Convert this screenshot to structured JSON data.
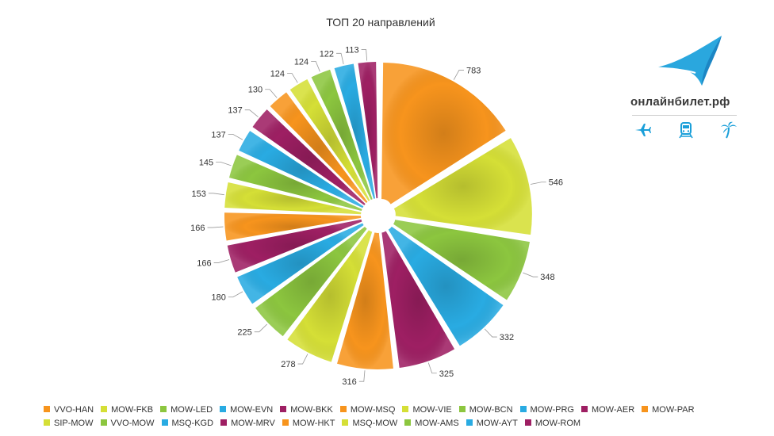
{
  "chart_data": {
    "type": "pie",
    "title": "ТОП 20 направлений",
    "categories": [
      "VVO-HAN",
      "MOW-FKB",
      "MOW-LED",
      "MOW-EVN",
      "MOW-BKK",
      "MOW-MSQ",
      "MOW-VIE",
      "MOW-BCN",
      "MOW-PRG",
      "MOW-AER",
      "MOW-PAR",
      "SIP-MOW",
      "VVO-MOW",
      "MSQ-KGD",
      "MOW-MRV",
      "MOW-HKT",
      "MSQ-MOW",
      "MOW-AMS",
      "MOW-AYT",
      "MOW-ROM"
    ],
    "values": [
      783,
      546,
      348,
      332,
      325,
      316,
      278,
      225,
      180,
      166,
      166,
      153,
      145,
      137,
      137,
      130,
      124,
      124,
      122,
      113
    ],
    "colors": [
      "#f7941d",
      "#d5df36",
      "#8cc63f",
      "#29abe2",
      "#9e1f63",
      "#f7941d",
      "#d5df36",
      "#8cc63f",
      "#29abe2",
      "#9e1f63",
      "#f7941d",
      "#d5df36",
      "#8cc63f",
      "#29abe2",
      "#9e1f63",
      "#f7941d",
      "#d5df36",
      "#8cc63f",
      "#29abe2",
      "#9e1f63"
    ],
    "legend_position": "bottom"
  },
  "brand": {
    "name": "онлайнбилет.рф",
    "icons": [
      "airplane-icon",
      "train-icon",
      "palm-tree-icon"
    ],
    "accent_color": "#1a9fd9"
  }
}
